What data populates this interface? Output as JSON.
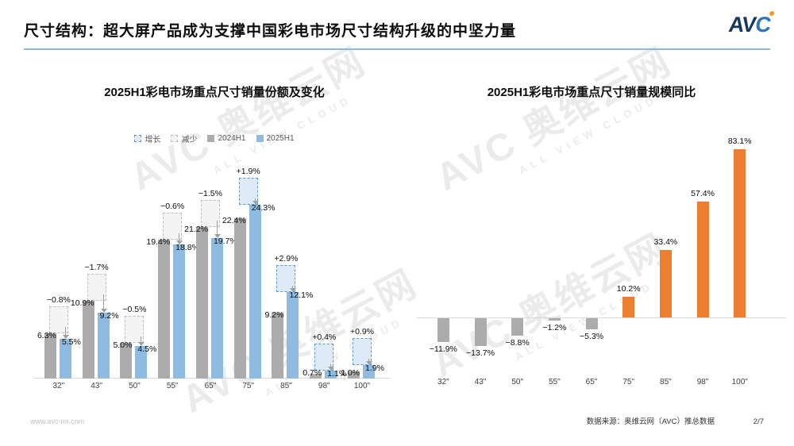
{
  "header": {
    "title": "尺寸结构：超大屏产品成为支撑中国彩电市场尺寸结构升级的中坚力量",
    "logo": {
      "text_av": "AV",
      "text_c": "C"
    }
  },
  "watermark": {
    "logo": "AVC",
    "cn": "奥维云网",
    "en": "ALL VIEW CLOUD"
  },
  "footer": {
    "website": "www.avc-mr.com",
    "source": "数据来源：奥维云网（AVC）推总数据",
    "page": "2/7"
  },
  "colors": {
    "gray_bar": "#ACACAC",
    "blue_bar": "#8FBBE0",
    "orange_bar": "#ED7D31",
    "inc_fill": "#DEEBF7",
    "inc_border": "#5B9BD5",
    "dec_fill": "#F4F4F4",
    "dec_border": "#BDBDBD",
    "header_line": "#8FB9DA",
    "axis_line": "#D9D9D9",
    "logo_navy": "#16365C",
    "logo_blue": "#2E75B6",
    "logo_orange": "#F59A23"
  },
  "chart_data": [
    {
      "type": "bar",
      "subtype": "grouped-bars-with-change-boxes",
      "title": "2025H1彩电市场重点尺寸销量份额及变化",
      "legend": [
        "增长",
        "减少",
        "2024H1",
        "2025H1"
      ],
      "legend_position": "top",
      "grid": false,
      "unit": "%",
      "categories": [
        "32\"",
        "43\"",
        "50\"",
        "55\"",
        "65\"",
        "75\"",
        "85\"",
        "98\"",
        "100\""
      ],
      "series": [
        {
          "name": "2024H1",
          "values": [
            6.3,
            10.9,
            5.0,
            19.4,
            21.2,
            22.4,
            9.2,
            0.7,
            1.0
          ],
          "labels": [
            "6.3%",
            "10.9%",
            "5.0%",
            "19.4%",
            "21.2%",
            "22.4%",
            "9.2%",
            "0.7%",
            "1.0%"
          ]
        },
        {
          "name": "2025H1",
          "values": [
            5.5,
            9.2,
            4.5,
            18.8,
            19.7,
            24.3,
            12.1,
            1.1,
            1.9
          ],
          "labels": [
            "5.5%",
            "9.2%",
            "4.5%",
            "18.8%",
            "19.7%",
            "24.3%",
            "12.1%",
            "1.1%",
            "1.9%"
          ]
        }
      ],
      "change": {
        "values": [
          -0.8,
          -1.7,
          -0.5,
          -0.6,
          -1.5,
          1.9,
          2.9,
          0.4,
          0.9
        ],
        "labels": [
          "−0.8%",
          "−1.7%",
          "−0.5%",
          "−0.6%",
          "−1.5%",
          "+1.9%",
          "+2.9%",
          "+0.4%",
          "+0.9%"
        ]
      }
    },
    {
      "type": "bar",
      "subtype": "yoy-positive-negative",
      "title": "2025H1彩电市场重点尺寸销量规模同比",
      "grid": false,
      "unit": "%",
      "categories": [
        "32\"",
        "43\"",
        "50\"",
        "55\"",
        "65\"",
        "75\"",
        "85\"",
        "98\"",
        "100\""
      ],
      "values": [
        -11.9,
        -13.7,
        -8.8,
        -1.2,
        -5.3,
        10.2,
        33.4,
        57.4,
        83.1
      ],
      "labels": [
        "−11.9%",
        "−13.7%",
        "−8.8%",
        "−1.2%",
        "−5.3%",
        "10.2%",
        "33.4%",
        "57.4%",
        "83.1%"
      ]
    }
  ]
}
